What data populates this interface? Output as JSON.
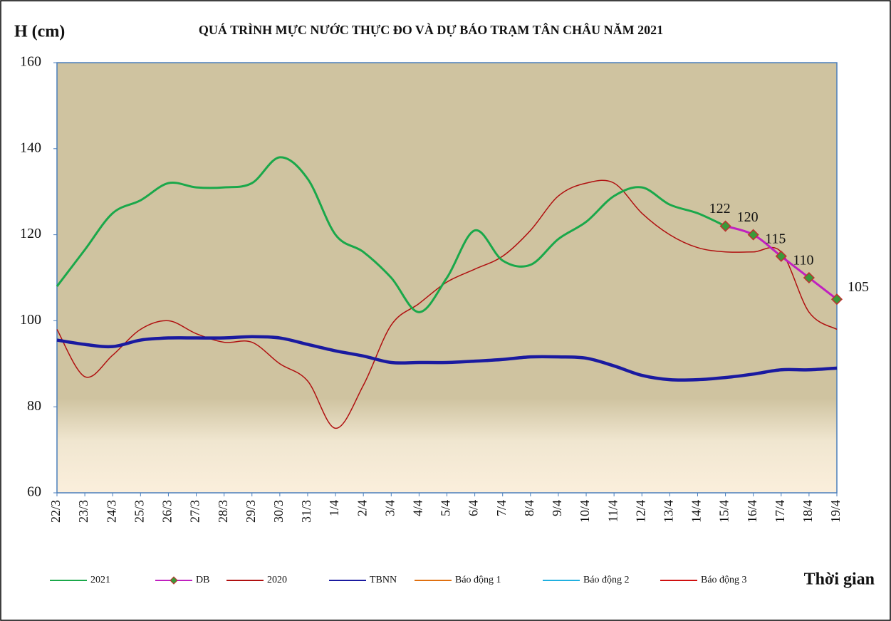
{
  "chart_data": {
    "type": "line",
    "title": "QUÁ TRÌNH MỰC NƯỚC THỰC ĐO VÀ DỰ BÁO TRẠM TÂN CHÂU NĂM 2021",
    "y_label": "H (cm)",
    "x_label": "Thời gian",
    "categories": [
      "22/3",
      "23/3",
      "24/3",
      "25/3",
      "26/3",
      "27/3",
      "28/3",
      "29/3",
      "30/3",
      "31/3",
      "1/4",
      "2/4",
      "3/4",
      "4/4",
      "5/4",
      "6/4",
      "7/4",
      "8/4",
      "9/4",
      "10/4",
      "11/4",
      "12/4",
      "13/4",
      "14/4",
      "15/4",
      "16/4",
      "17/4",
      "18/4",
      "19/4"
    ],
    "ylim": [
      60,
      160
    ],
    "yticks": [
      60,
      80,
      100,
      120,
      140,
      160
    ],
    "series": [
      {
        "name": "2021",
        "color": "#1aa84a",
        "width": 3,
        "values": [
          108,
          116.5,
          125,
          128,
          132,
          131,
          131,
          132,
          138,
          133,
          120,
          116,
          110,
          102,
          110,
          121,
          114,
          113,
          119,
          123,
          129,
          131,
          127,
          125,
          122,
          null,
          null,
          null,
          null
        ]
      },
      {
        "name": "DB",
        "color": "#c020c0",
        "width": 3,
        "markers": true,
        "data_labels": true,
        "values": [
          null,
          null,
          null,
          null,
          null,
          null,
          null,
          null,
          null,
          null,
          null,
          null,
          null,
          null,
          null,
          null,
          null,
          null,
          null,
          null,
          null,
          null,
          null,
          null,
          122,
          120,
          115,
          110,
          105
        ]
      },
      {
        "name": "2020",
        "color": "#b01010",
        "width": 1.5,
        "values": [
          98,
          87,
          92,
          98,
          100,
          97,
          95,
          95,
          90,
          86,
          75,
          85,
          99,
          104,
          109,
          112,
          115,
          121,
          129,
          132,
          132,
          125,
          120,
          117,
          116,
          116,
          116,
          102,
          98
        ]
      },
      {
        "name": "TBNN",
        "color": "#1a1aa0",
        "width": 4.5,
        "values": [
          95.5,
          94.5,
          94,
          95.5,
          96,
          96,
          96,
          96.3,
          96,
          94.5,
          93,
          91.8,
          90.3,
          90.3,
          90.3,
          90.6,
          91,
          91.6,
          91.6,
          91.3,
          89.5,
          87.3,
          86.3,
          86.3,
          86.8,
          87.6,
          88.6,
          88.6,
          89
        ]
      },
      {
        "name": "Báo động 1",
        "color": "#e07010",
        "width": 1.5,
        "values": [
          null,
          null,
          null,
          null,
          null,
          null,
          null,
          null,
          null,
          null,
          null,
          null,
          null,
          null,
          null,
          null,
          null,
          null,
          null,
          null,
          null,
          null,
          null,
          null,
          null,
          null,
          null,
          null,
          null
        ]
      },
      {
        "name": "Báo động 2",
        "color": "#20b0e0",
        "width": 1.5,
        "values": [
          null,
          null,
          null,
          null,
          null,
          null,
          null,
          null,
          null,
          null,
          null,
          null,
          null,
          null,
          null,
          null,
          null,
          null,
          null,
          null,
          null,
          null,
          null,
          null,
          null,
          null,
          null,
          null,
          null
        ]
      },
      {
        "name": "Báo động 3",
        "color": "#d01010",
        "width": 1.5,
        "values": [
          null,
          null,
          null,
          null,
          null,
          null,
          null,
          null,
          null,
          null,
          null,
          null,
          null,
          null,
          null,
          null,
          null,
          null,
          null,
          null,
          null,
          null,
          null,
          null,
          null,
          null,
          null,
          null,
          null
        ]
      }
    ]
  }
}
